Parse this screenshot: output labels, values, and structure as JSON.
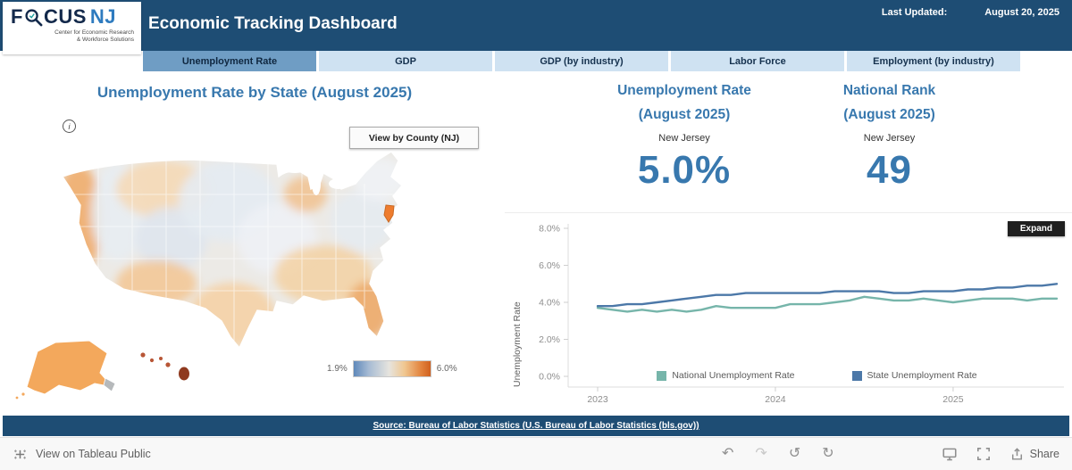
{
  "header": {
    "title": "Economic Tracking Dashboard",
    "last_updated_label": "Last Updated:",
    "last_updated_value": "August 20, 2025",
    "logo": {
      "brand_f": "F",
      "brand_cus": "CUS",
      "brand_nj": "NJ",
      "tagline_line1": "Center for Economic Research",
      "tagline_line2": "& Workforce Solutions"
    }
  },
  "tabs": [
    {
      "label": "Unemployment Rate",
      "active": true
    },
    {
      "label": "GDP",
      "active": false
    },
    {
      "label": "GDP (by industry)",
      "active": false
    },
    {
      "label": "Labor Force",
      "active": false
    },
    {
      "label": "Employment (by industry)",
      "active": false
    }
  ],
  "map_section": {
    "title": "Unemployment Rate by State (August 2025)",
    "county_button_label": "View by County (NJ)",
    "legend_min": "1.9%",
    "legend_max": "6.0%",
    "highlighted_state": "New Jersey"
  },
  "kpis": [
    {
      "title_line1": "Unemployment Rate",
      "title_line2": "(August 2025)",
      "subtitle": "New Jersey",
      "value": "5.0%"
    },
    {
      "title_line1": "National Rank",
      "title_line2": "(August 2025)",
      "subtitle": "New Jersey",
      "value": "49"
    }
  ],
  "chart": {
    "expand_label": "Expand"
  },
  "chart_data": {
    "type": "line",
    "title": "Unemployment Rate trend",
    "x": [
      "2023-01",
      "2023-02",
      "2023-03",
      "2023-04",
      "2023-05",
      "2023-06",
      "2023-07",
      "2023-08",
      "2023-09",
      "2023-10",
      "2023-11",
      "2023-12",
      "2024-01",
      "2024-02",
      "2024-03",
      "2024-04",
      "2024-05",
      "2024-06",
      "2024-07",
      "2024-08",
      "2024-09",
      "2024-10",
      "2024-11",
      "2024-12",
      "2025-01",
      "2025-02",
      "2025-03",
      "2025-04",
      "2025-05",
      "2025-06",
      "2025-07",
      "2025-08"
    ],
    "series": [
      {
        "name": "National Unemployment Rate",
        "color": "#76b5aa",
        "values": [
          3.7,
          3.6,
          3.5,
          3.6,
          3.5,
          3.6,
          3.5,
          3.6,
          3.8,
          3.7,
          3.7,
          3.7,
          3.7,
          3.9,
          3.9,
          3.9,
          4.0,
          4.1,
          4.3,
          4.2,
          4.1,
          4.1,
          4.2,
          4.1,
          4.0,
          4.1,
          4.2,
          4.2,
          4.2,
          4.1,
          4.2,
          4.2
        ]
      },
      {
        "name": "State Unemployment Rate",
        "color": "#4c78a8",
        "values": [
          3.8,
          3.8,
          3.9,
          3.9,
          4.0,
          4.1,
          4.2,
          4.3,
          4.4,
          4.4,
          4.5,
          4.5,
          4.5,
          4.5,
          4.5,
          4.5,
          4.6,
          4.6,
          4.6,
          4.6,
          4.5,
          4.5,
          4.6,
          4.6,
          4.6,
          4.7,
          4.7,
          4.8,
          4.8,
          4.9,
          4.9,
          5.0
        ]
      }
    ],
    "ylabel": "Unemployment Rate",
    "xlabel": "",
    "ylim": [
      0,
      8
    ],
    "yticks": [
      "0.0%",
      "2.0%",
      "4.0%",
      "6.0%",
      "8.0%"
    ],
    "xticks": [
      "2023",
      "2024",
      "2025"
    ],
    "legend_position": "bottom",
    "grid": false
  },
  "source_bar": {
    "text": "Source: Bureau of Labor Statistics (U.S. Bureau of Labor Statistics (bls.gov))"
  },
  "footer": {
    "view_label": "View on Tableau Public",
    "share_label": "Share"
  },
  "colors": {
    "header_bg": "#1e4d74",
    "tab_active_bg": "#6f9dc4",
    "tab_inactive_bg": "#cfe2f2",
    "heading_blue": "#3878ae",
    "kpi_value_blue": "#3878ae",
    "national_line": "#76b5aa",
    "state_line": "#4c78a8",
    "nj_highlight": "#ee7c2e",
    "map_scale_min": "#5f89ba",
    "map_scale_max": "#d0601f"
  }
}
